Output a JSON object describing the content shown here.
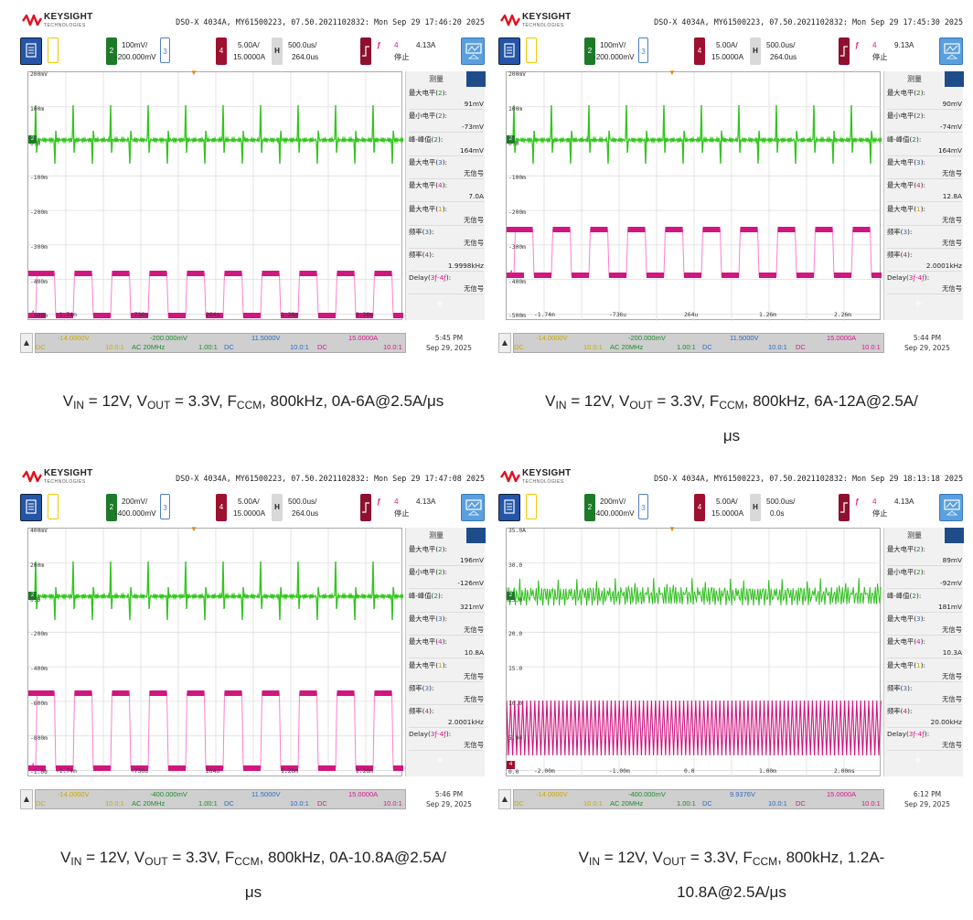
{
  "common": {
    "brand": "KEYSIGHT",
    "brand_sub": "TECHNOLOGIES",
    "meas_title": "测量",
    "ch3_num": "3",
    "ch2_num": "2",
    "ch4_num": "4",
    "h_label": "H",
    "trig_symbol": "ƒ",
    "trig_num": "4",
    "trig_state": "停止",
    "trig_value": "4.13A",
    "bottom_ch1_value": "-14.0000V",
    "bottom_ch1_ratio": "10.0:1",
    "bottom_ch1_coupling": "DC",
    "bottom_ch2_coupling": "AC 20MHz",
    "bottom_ch2_ratio": "1.00:1",
    "bottom_ch3_coupling": "DC",
    "bottom_ch3_ratio": "10.0:1",
    "bottom_ch4_value": "15.0000A",
    "bottom_ch4_coupling": "DC",
    "bottom_ch4_ratio": "10.0:1",
    "clock_date": "Sep 29, 2025",
    "up_arrow": "▲",
    "plus": "+"
  },
  "panels": [
    {
      "info": "DSO-X 4034A, MY61500223, 07.50.2021102832: Mon Sep 29 17:46:20 2025",
      "ch2_scale": "100mV/",
      "ch2_offset": "-200.000mV",
      "ch4_scale": "5.00A/",
      "ch4_offset": "15.0000A",
      "h_scale": "500.0us/",
      "h_delay": "264.0us",
      "trig_value": "4.13A",
      "y_labels": [
        "200mV",
        "100m",
        "0.0",
        "-100m",
        "-200m",
        "-300m",
        "-400m",
        "-500m"
      ],
      "x_labels": [
        "-1.74m",
        "-736u",
        "264u",
        "1.26m",
        "2.26m"
      ],
      "measurements": [
        {
          "label": "最大电平",
          "ch": "2",
          "value": "91mV"
        },
        {
          "label": "最小电平",
          "ch": "2",
          "value": "-73mV"
        },
        {
          "label": "峰-峰值",
          "ch": "2",
          "value": "164mV"
        },
        {
          "label": "最大电平",
          "ch": "3",
          "value": "无信号"
        },
        {
          "label": "最大电平",
          "ch": "4",
          "value": "7.0A"
        },
        {
          "label": "最大电平",
          "ch": "1",
          "value": "无信号"
        },
        {
          "label": "频率",
          "ch": "3",
          "value": "无信号"
        },
        {
          "label": "频率",
          "ch": "4",
          "value": "1.9998kHz"
        },
        {
          "label": "Delay",
          "ch": "3ƒ-4ƒ",
          "value": "无信号"
        }
      ],
      "bottom_ch2_value": "-200.000mV",
      "bottom_ch3_value": "11.5000V",
      "clock_time": "5:45 PM",
      "caption": {
        "vin": "V",
        "vin_sub": "IN",
        "vin_rest": " = 12V, V",
        "vout_sub": "OUT",
        "vout_rest": " = 3.3V, F",
        "f_sub": "CCM",
        "line1_rest": ", 800kHz, 0A-6A@2.5A/μs",
        "line2": ""
      }
    },
    {
      "info": "DSO-X 4034A, MY61500223, 07.50.2021102832: Mon Sep 29 17:45:30 2025",
      "ch2_scale": "100mV/",
      "ch2_offset": "-200.000mV",
      "ch4_scale": "5.00A/",
      "ch4_offset": "15.0000A",
      "h_scale": "500.0us/",
      "h_delay": "264.0us",
      "trig_value": "9.13A",
      "y_labels": [
        "200mV",
        "100m",
        "0.0",
        "-100m",
        "-200m",
        "-300m",
        "-400m",
        "-500m"
      ],
      "x_labels": [
        "-1.74m",
        "-736u",
        "264u",
        "1.26m",
        "2.26m"
      ],
      "measurements": [
        {
          "label": "最大电平",
          "ch": "2",
          "value": "90mV"
        },
        {
          "label": "最小电平",
          "ch": "2",
          "value": "-74mV"
        },
        {
          "label": "峰-峰值",
          "ch": "2",
          "value": "164mV"
        },
        {
          "label": "最大电平",
          "ch": "3",
          "value": "无信号"
        },
        {
          "label": "最大电平",
          "ch": "4",
          "value": "12.8A"
        },
        {
          "label": "最大电平",
          "ch": "1",
          "value": "无信号"
        },
        {
          "label": "频率",
          "ch": "3",
          "value": "无信号"
        },
        {
          "label": "频率",
          "ch": "4",
          "value": "2.0001kHz"
        },
        {
          "label": "Delay",
          "ch": "3ƒ-4ƒ",
          "value": "无信号"
        }
      ],
      "bottom_ch2_value": "-200.000mV",
      "bottom_ch3_value": "11.5000V",
      "clock_time": "5:44 PM",
      "caption": {
        "vin": "V",
        "vin_sub": "IN",
        "vin_rest": " = 12V, V",
        "vout_sub": "OUT",
        "vout_rest": " = 3.3V, F",
        "f_sub": "CCM",
        "line1_rest": ", 800kHz, 6A-12A@2.5A/",
        "line2": "μs"
      }
    },
    {
      "info": "DSO-X 4034A, MY61500223, 07.50.2021102832: Mon Sep 29 17:47:08 2025",
      "ch2_scale": "200mV/",
      "ch2_offset": "-400.000mV",
      "ch4_scale": "5.00A/",
      "ch4_offset": "15.0000A",
      "h_scale": "500.0us/",
      "h_delay": "264.0us",
      "trig_value": "4.13A",
      "y_labels": [
        "400mV",
        "200m",
        "0.0",
        "-200m",
        "-400m",
        "-600m",
        "-800m",
        "-1.00"
      ],
      "x_labels": [
        "-1.74m",
        "-736u",
        "264u",
        "1.26m",
        "2.26m"
      ],
      "measurements": [
        {
          "label": "最大电平",
          "ch": "2",
          "value": "196mV"
        },
        {
          "label": "最小电平",
          "ch": "2",
          "value": "-126mV"
        },
        {
          "label": "峰-峰值",
          "ch": "2",
          "value": "321mV"
        },
        {
          "label": "最大电平",
          "ch": "3",
          "value": "无信号"
        },
        {
          "label": "最大电平",
          "ch": "4",
          "value": "10.8A"
        },
        {
          "label": "最大电平",
          "ch": "1",
          "value": "无信号"
        },
        {
          "label": "频率",
          "ch": "3",
          "value": "无信号"
        },
        {
          "label": "频率",
          "ch": "4",
          "value": "2.0001kHz"
        },
        {
          "label": "Delay",
          "ch": "3ƒ-4ƒ",
          "value": "无信号"
        }
      ],
      "bottom_ch2_value": "-400.000mV",
      "bottom_ch3_value": "11.5000V",
      "clock_time": "5:46 PM",
      "caption": {
        "vin": "V",
        "vin_sub": "IN",
        "vin_rest": " = 12V, V",
        "vout_sub": "OUT",
        "vout_rest": " = 3.3V, F",
        "f_sub": "CCM",
        "line1_rest": ", 800kHz, 0A-10.8A@2.5A/",
        "line2": "μs"
      }
    },
    {
      "info": "DSO-X 4034A, MY61500223, 07.50.2021102832: Mon Sep 29 18:13:18 2025",
      "ch2_scale": "200mV/",
      "ch2_offset": "-400.000mV",
      "ch4_scale": "5.00A/",
      "ch4_offset": "15.0000A",
      "h_scale": "500.0us/",
      "h_delay": "0.0s",
      "trig_value": "4.13A",
      "y_labels": [
        "35.0A",
        "30.0",
        "25.0",
        "20.0",
        "15.0",
        "10.0",
        "5.00",
        "0.0"
      ],
      "x_labels": [
        "-2.00m",
        "-1.00m",
        "0.0",
        "1.00m",
        "2.00ms"
      ],
      "measurements": [
        {
          "label": "最大电平",
          "ch": "2",
          "value": "89mV"
        },
        {
          "label": "最小电平",
          "ch": "2",
          "value": "-92mV"
        },
        {
          "label": "峰-峰值",
          "ch": "2",
          "value": "181mV"
        },
        {
          "label": "最大电平",
          "ch": "3",
          "value": "无信号"
        },
        {
          "label": "最大电平",
          "ch": "4",
          "value": "10.3A"
        },
        {
          "label": "最大电平",
          "ch": "1",
          "value": "无信号"
        },
        {
          "label": "频率",
          "ch": "3",
          "value": "无信号"
        },
        {
          "label": "频率",
          "ch": "4",
          "value": "20.00kHz"
        },
        {
          "label": "Delay",
          "ch": "3ƒ-4ƒ",
          "value": "无信号"
        }
      ],
      "bottom_ch2_value": "-400.000mV",
      "bottom_ch3_value": "9.9376V",
      "clock_time": "6:12 PM",
      "caption": {
        "vin": "V",
        "vin_sub": "IN",
        "vin_rest": " = 12V, V",
        "vout_sub": "OUT",
        "vout_rest": " = 3.3V, F",
        "f_sub": "CCM",
        "line1_rest": ", 800kHz, 1.2A-",
        "line2": "10.8A@2.5A/μs"
      }
    }
  ],
  "colors": {
    "ch1": "#c9a800",
    "ch2": "#1d8a2c",
    "ch2_trace": "#3fdc1f",
    "ch3": "#2e6ac0",
    "ch4": "#d8158a",
    "ch4_trace": "#d0167f",
    "grid": "#dddddd"
  },
  "icons": [
    "keysight-wave-icon",
    "up-arrow-icon",
    "plus-icon"
  ]
}
